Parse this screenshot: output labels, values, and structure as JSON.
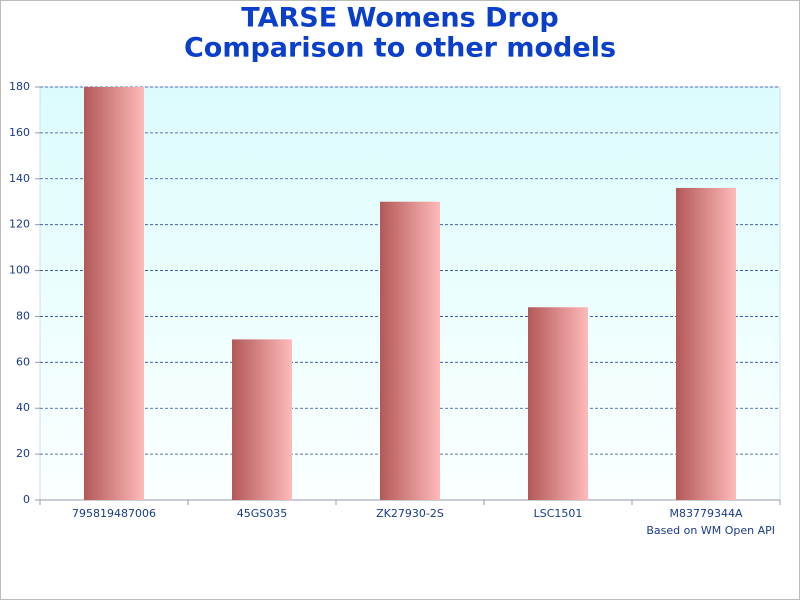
{
  "chart_data": {
    "type": "bar",
    "title": [
      "TARSE Womens Drop",
      "Comparison to other models"
    ],
    "categories": [
      "795819487006",
      "45GS035",
      "ZK27930-2S",
      "LSC1501",
      "M83779344A"
    ],
    "values": [
      180,
      70,
      130,
      84,
      136
    ],
    "color": [
      "#b35858",
      "#ffbaba"
    ],
    "ylim": [
      0,
      180
    ],
    "yticks": [
      0,
      20,
      40,
      60,
      80,
      100,
      120,
      140,
      160,
      180
    ],
    "grid": true,
    "annotation": "Based on WM Open API"
  }
}
